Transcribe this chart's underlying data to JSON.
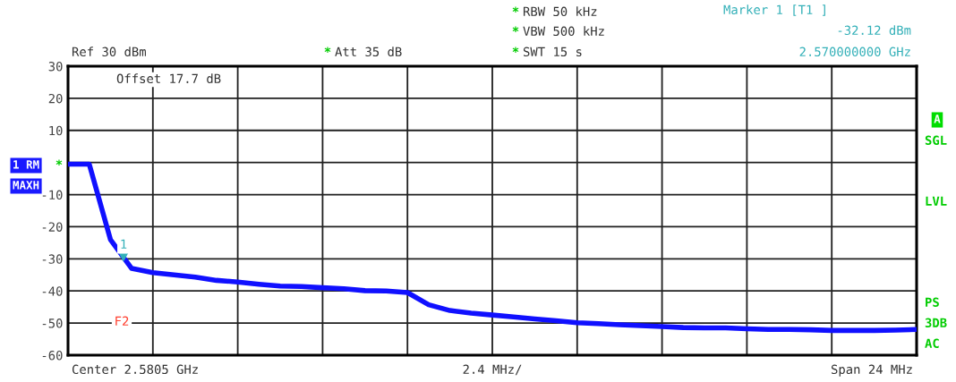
{
  "chart_data": {
    "type": "line",
    "categories": [
      null,
      null,
      null,
      null,
      null,
      null,
      null,
      null,
      null,
      null,
      null,
      null,
      null,
      null,
      null,
      null,
      null,
      null,
      null,
      null,
      null,
      null,
      null,
      null,
      null,
      null,
      null,
      null,
      null,
      null,
      null,
      null,
      null,
      null,
      null,
      null,
      null,
      null,
      null,
      null,
      null
    ],
    "series": [
      {
        "color": "#1010ff",
        "values": [
          -0.5,
          -0.5,
          -24,
          -33,
          -34.3,
          -35,
          -35.7,
          -36.7,
          -37.2,
          -37.9,
          -38.5,
          -38.6,
          -39,
          -39.3,
          -39.9,
          -40,
          -40.5,
          -44.3,
          -46.1,
          -46.9,
          -47.5,
          -48.1,
          -48.7,
          -49.3,
          -49.9,
          -50.2,
          -50.5,
          -50.8,
          -51.1,
          -51.4,
          -51.5,
          -51.5,
          -51.8,
          -52,
          -52,
          -52.1,
          -52.3,
          -52.3,
          -52.3,
          -52.2,
          -52
        ]
      }
    ],
    "ylim": [
      -60,
      30
    ],
    "yticks": [
      -60,
      -50,
      -40,
      -30,
      -20,
      -10,
      {
        "value": 0,
        "label": null
      },
      10,
      20,
      30
    ],
    "grid": true,
    "annotations": [
      "*",
      "RBW 50 kHz",
      "*",
      "VBW 500 kHz",
      "*",
      "SWT 15 s",
      "Marker 1 [T1 ]",
      "-32.12 dBm",
      "2.570000000 GHz",
      "Ref 30 dBm",
      "*",
      "Att 35 dB",
      "Offset 17.7 dB",
      "1 RM",
      "*",
      "MAXH",
      "A",
      "SGL",
      "LVL",
      "PS",
      "3DB",
      "AC",
      "Center 2.5805 GHz",
      "2.4 MHz/",
      "Span 24 MHz",
      "1",
      "F2"
    ]
  }
}
